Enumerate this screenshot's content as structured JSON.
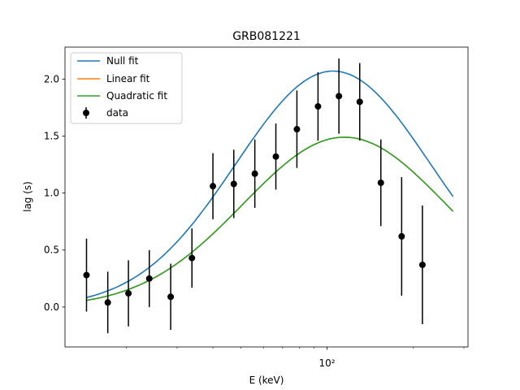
{
  "chart_data": {
    "type": "scatter",
    "title": "GRB081221",
    "xlabel": "E (keV)",
    "ylabel": "lag (s)",
    "xscale": "log",
    "xlim": [
      12.2,
      310
    ],
    "ylim": [
      -0.35,
      2.28
    ],
    "yticks": [
      0.0,
      0.5,
      1.0,
      1.5,
      2.0
    ],
    "ytick_labels": [
      "0.0",
      "0.5",
      "1.0",
      "1.5",
      "2.0"
    ],
    "xtick_major_label": "10²",
    "grid": false,
    "legend_position": "top-left",
    "legend": [
      "Null fit",
      "Linear fit",
      "Quadratic fit",
      "data"
    ],
    "series": [
      {
        "name": "Null fit",
        "kind": "line",
        "color": "#1f77b4",
        "peak_x": 105,
        "peak_y": 2.07,
        "width": 0.48,
        "x_range": [
          14.5,
          275
        ]
      },
      {
        "name": "Linear fit",
        "kind": "line",
        "color": "#ff7f0e",
        "peak_x": 115,
        "peak_y": 1.49,
        "width": 0.5,
        "x_range": [
          14.5,
          275
        ]
      },
      {
        "name": "Quadratic fit",
        "kind": "line",
        "color": "#2ca02c",
        "peak_x": 115,
        "peak_y": 1.49,
        "width": 0.5,
        "x_range": [
          14.5,
          275
        ]
      },
      {
        "name": "data",
        "kind": "errorbar",
        "color": "#000000",
        "points": [
          {
            "x": 14.5,
            "y": 0.28,
            "err": 0.32
          },
          {
            "x": 17.2,
            "y": 0.04,
            "err": 0.27
          },
          {
            "x": 20.3,
            "y": 0.12,
            "err": 0.29
          },
          {
            "x": 24.0,
            "y": 0.25,
            "err": 0.25
          },
          {
            "x": 28.5,
            "y": 0.09,
            "err": 0.29
          },
          {
            "x": 33.8,
            "y": 0.43,
            "err": 0.26
          },
          {
            "x": 40.0,
            "y": 1.06,
            "err": 0.29
          },
          {
            "x": 47.3,
            "y": 1.08,
            "err": 0.3
          },
          {
            "x": 56.0,
            "y": 1.17,
            "err": 0.3
          },
          {
            "x": 66.3,
            "y": 1.32,
            "err": 0.29
          },
          {
            "x": 78.5,
            "y": 1.56,
            "err": 0.34
          },
          {
            "x": 93.0,
            "y": 1.76,
            "err": 0.3
          },
          {
            "x": 110.0,
            "y": 1.85,
            "err": 0.33
          },
          {
            "x": 130.0,
            "y": 1.8,
            "err": 0.34
          },
          {
            "x": 154.0,
            "y": 1.09,
            "err": 0.38
          },
          {
            "x": 182.0,
            "y": 0.62,
            "err": 0.52
          },
          {
            "x": 215.0,
            "y": 0.37,
            "err": 0.52
          }
        ]
      }
    ]
  }
}
